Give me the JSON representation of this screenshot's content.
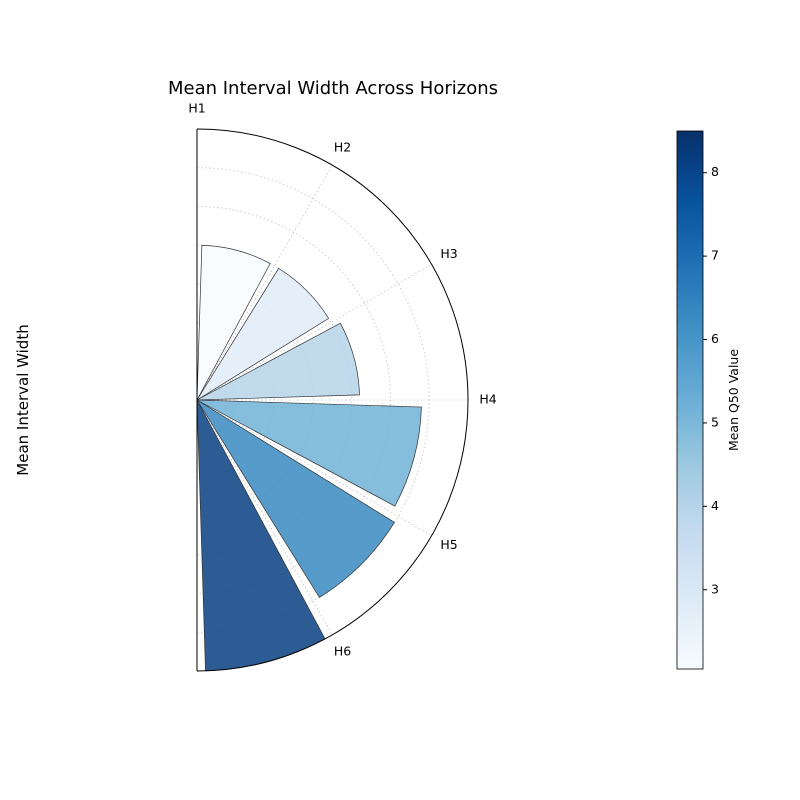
{
  "chart_data": {
    "type": "bar",
    "subtype": "polar-half",
    "title": "Mean Interval Width Across Horizons",
    "ylabel": "Mean Interval Width",
    "categories": [
      "H1",
      "H2",
      "H3",
      "H4",
      "H5",
      "H6"
    ],
    "values": [
      4.0,
      4.0,
      4.2,
      5.8,
      6.0,
      7.0
    ],
    "color_values": [
      2.05,
      2.8,
      4.0,
      5.2,
      6.3,
      8.1
    ],
    "rmax": 7.0,
    "grid": true,
    "colorbar": {
      "label": "Mean Q50 Value",
      "ticks": [
        "3",
        "4",
        "5",
        "6",
        "7",
        "8"
      ],
      "tick_values": [
        3,
        4,
        5,
        6,
        7,
        8
      ],
      "min": 2.05,
      "max": 8.5,
      "colormap": "Blues"
    }
  }
}
